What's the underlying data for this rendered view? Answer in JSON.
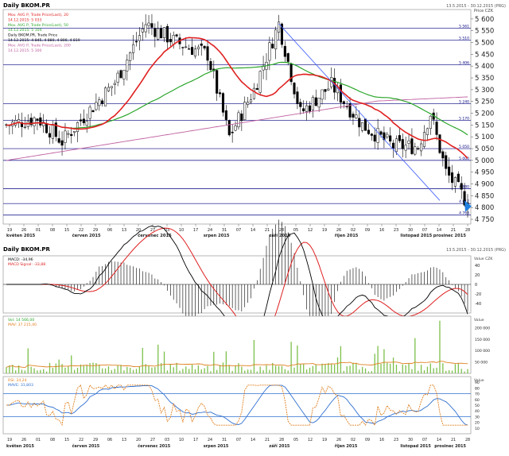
{
  "chart_data": [
    {
      "type": "candlestick",
      "title": "Daily BKOM.PR",
      "date_range": "13.5.2015 - 30.12.2015 (PRG)",
      "axis_unit": "Price CZK",
      "ylim": [
        4730,
        5640
      ],
      "y_ticks": [
        5600,
        5550,
        5500,
        5450,
        5400,
        5350,
        5300,
        5250,
        5200,
        5150,
        5100,
        5050,
        5000,
        4950,
        4900,
        4850,
        4800,
        4750
      ],
      "x_ticks": [
        "19",
        "26",
        "01",
        "08",
        "15",
        "22",
        "29",
        "06",
        "13",
        "20",
        "27",
        "03",
        "10",
        "17",
        "24",
        "31",
        "07",
        "14",
        "21",
        "28",
        "05",
        "12",
        "19",
        "26",
        "02",
        "09",
        "16",
        "23",
        "30",
        "07",
        "14",
        "21",
        "28"
      ],
      "months": [
        "květen 2015",
        "červen 2015",
        "červenec 2015",
        "srpen 2015",
        "září 2015",
        "říjen 2015",
        "listopad 2015",
        "prosinec 2015"
      ],
      "legend": [
        "Mov. AVG P, Trade Price(Last), 20",
        "14.12.2015: 5 033",
        "Mov. AVG P, Trade Price(Last), 50",
        "14.12.2015: 5 104",
        "Daily BKOM.PR, Trade Price",
        "14.12.2015: 4 845, 4 880, 4 800, 4 819",
        "Mov. AVG P, Trade Price(Last), 200",
        "14.12.2015: 5 300"
      ],
      "levels": [
        {
          "label": "5 561",
          "value": 5561
        },
        {
          "label": "5 510",
          "value": 5510
        },
        {
          "label": "5 406",
          "value": 5406
        },
        {
          "label": "5 240",
          "value": 5240
        },
        {
          "label": "5 170",
          "value": 5170
        },
        {
          "label": "5 050",
          "value": 5050
        },
        {
          "label": "5 000",
          "value": 5000
        },
        {
          "label": "4 880",
          "value": 4880
        },
        {
          "label": "4 817",
          "value": 4817
        },
        {
          "label": "4 768",
          "value": 4768
        }
      ],
      "current_value": 4819,
      "series_colors": {
        "ma20": "#e02020",
        "ma50": "#2aa52a",
        "ma200": "#c060a0",
        "candles": "#000000",
        "levels": "#000080",
        "trendline": "#4060ff"
      }
    },
    {
      "type": "line",
      "title": "Daily BKOM.PR",
      "date_range": "13.5.2015 - 30.12.2015 (PRG)",
      "legend": [
        "MACD: -34,96",
        "MACD Signal: -33,88"
      ],
      "axis_unit": "Value CZK",
      "ylim": [
        -60,
        60
      ],
      "y_ticks": [
        40,
        20,
        0,
        -20,
        -40
      ]
    },
    {
      "type": "bar",
      "legend": [
        "Vol: 14 566,00",
        "MAV: 37 215,40"
      ],
      "axis_unit": "Value",
      "ylim": [
        0,
        250000
      ],
      "y_ticks": [
        "200 000",
        "150 000",
        "100 000",
        "50 000"
      ]
    },
    {
      "type": "line",
      "legend": [
        "RSI: 24,24",
        "MAVE: 31,803"
      ],
      "axis_unit": "Value",
      "ylim": [
        0,
        100
      ],
      "y_ticks": [
        90,
        80,
        70,
        60,
        50,
        40,
        30,
        20,
        10
      ],
      "levels": [
        70,
        30
      ]
    }
  ],
  "bottom_months": [
    "květen 2015",
    "červen 2015",
    "červenec 2015",
    "srpen 2015",
    "září 2015",
    "říjen 2015",
    "listopad 2015",
    "prosinec 2015"
  ]
}
